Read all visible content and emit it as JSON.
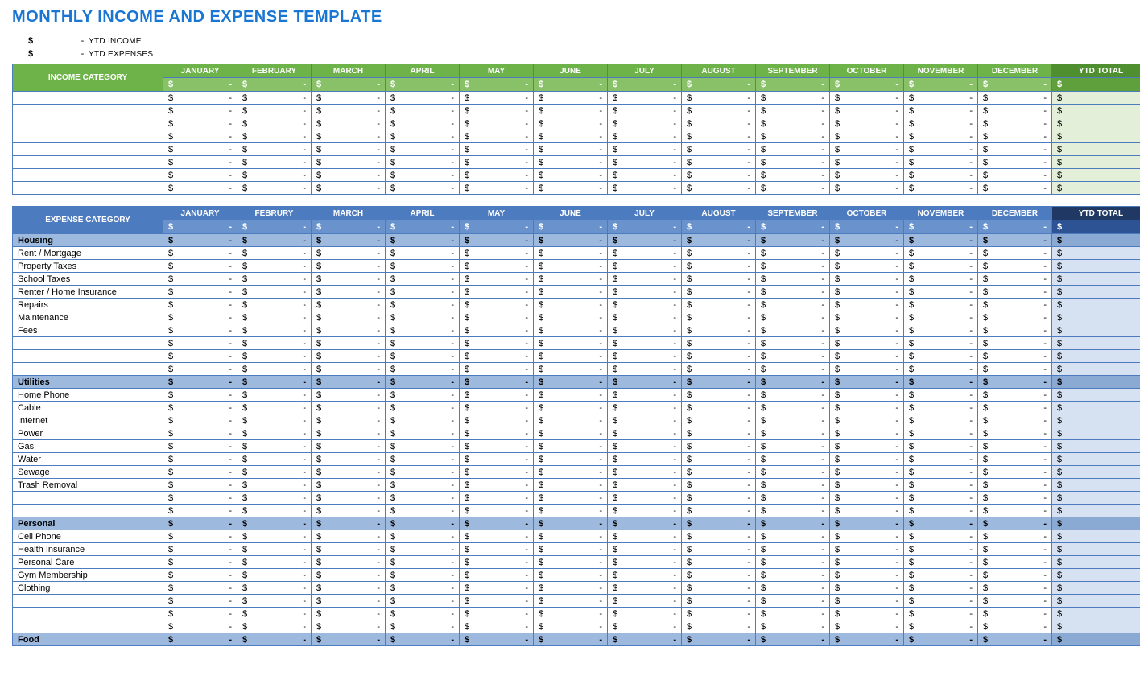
{
  "title": "MONTHLY INCOME AND EXPENSE TEMPLATE",
  "summary": {
    "line1_label": "YTD INCOME",
    "line2_label": "YTD EXPENSES",
    "dollar": "$",
    "dash": "-"
  },
  "months": [
    "JANUARY",
    "FEBRUARY",
    "MARCH",
    "APRIL",
    "MAY",
    "JUNE",
    "JULY",
    "AUGUST",
    "SEPTEMBER",
    "OCTOBER",
    "NOVEMBER",
    "DECEMBER"
  ],
  "months_exp": [
    "JANUARY",
    "FEBRURY",
    "MARCH",
    "APRIL",
    "MAY",
    "JUNE",
    "JULY",
    "AUGUST",
    "SEPTEMBER",
    "OCTOBER",
    "NOVEMBER",
    "DECEMBER"
  ],
  "ytd_label": "YTD TOTAL",
  "income": {
    "category_header": "INCOME CATEGORY",
    "blank_rows": 8
  },
  "expense": {
    "category_header": "EXPENSE CATEGORY",
    "groups": [
      {
        "name": "Housing",
        "items": [
          "Rent / Mortgage",
          "Property Taxes",
          "School Taxes",
          "Renter / Home Insurance",
          "Repairs",
          "Maintenance",
          "Fees",
          "",
          "",
          ""
        ]
      },
      {
        "name": "Utilities",
        "items": [
          "Home Phone",
          "Cable",
          "Internet",
          "Power",
          "Gas",
          "Water",
          "Sewage",
          "Trash Removal",
          "",
          ""
        ]
      },
      {
        "name": "Personal",
        "items": [
          "Cell Phone",
          "Health Insurance",
          "Personal Care",
          "Gym Membership",
          "Clothing",
          "",
          "",
          ""
        ]
      },
      {
        "name": "Food",
        "items": []
      }
    ]
  },
  "amount_placeholder": {
    "sym": "$",
    "val": "-"
  },
  "colors": {
    "title": "#1976d2",
    "inc_header": "#6eb34a",
    "inc_header_ytd": "#4f8f2f",
    "inc_sub": "#88c168",
    "inc_ytd_cell": "#e4efd9",
    "exp_header": "#4d7bc0",
    "exp_header_ytd": "#1f3864",
    "exp_sub": "#6a93cd",
    "exp_group": "#9db9dd",
    "exp_ytd_cell": "#d6e1f1",
    "border": "#4d7bc0"
  }
}
